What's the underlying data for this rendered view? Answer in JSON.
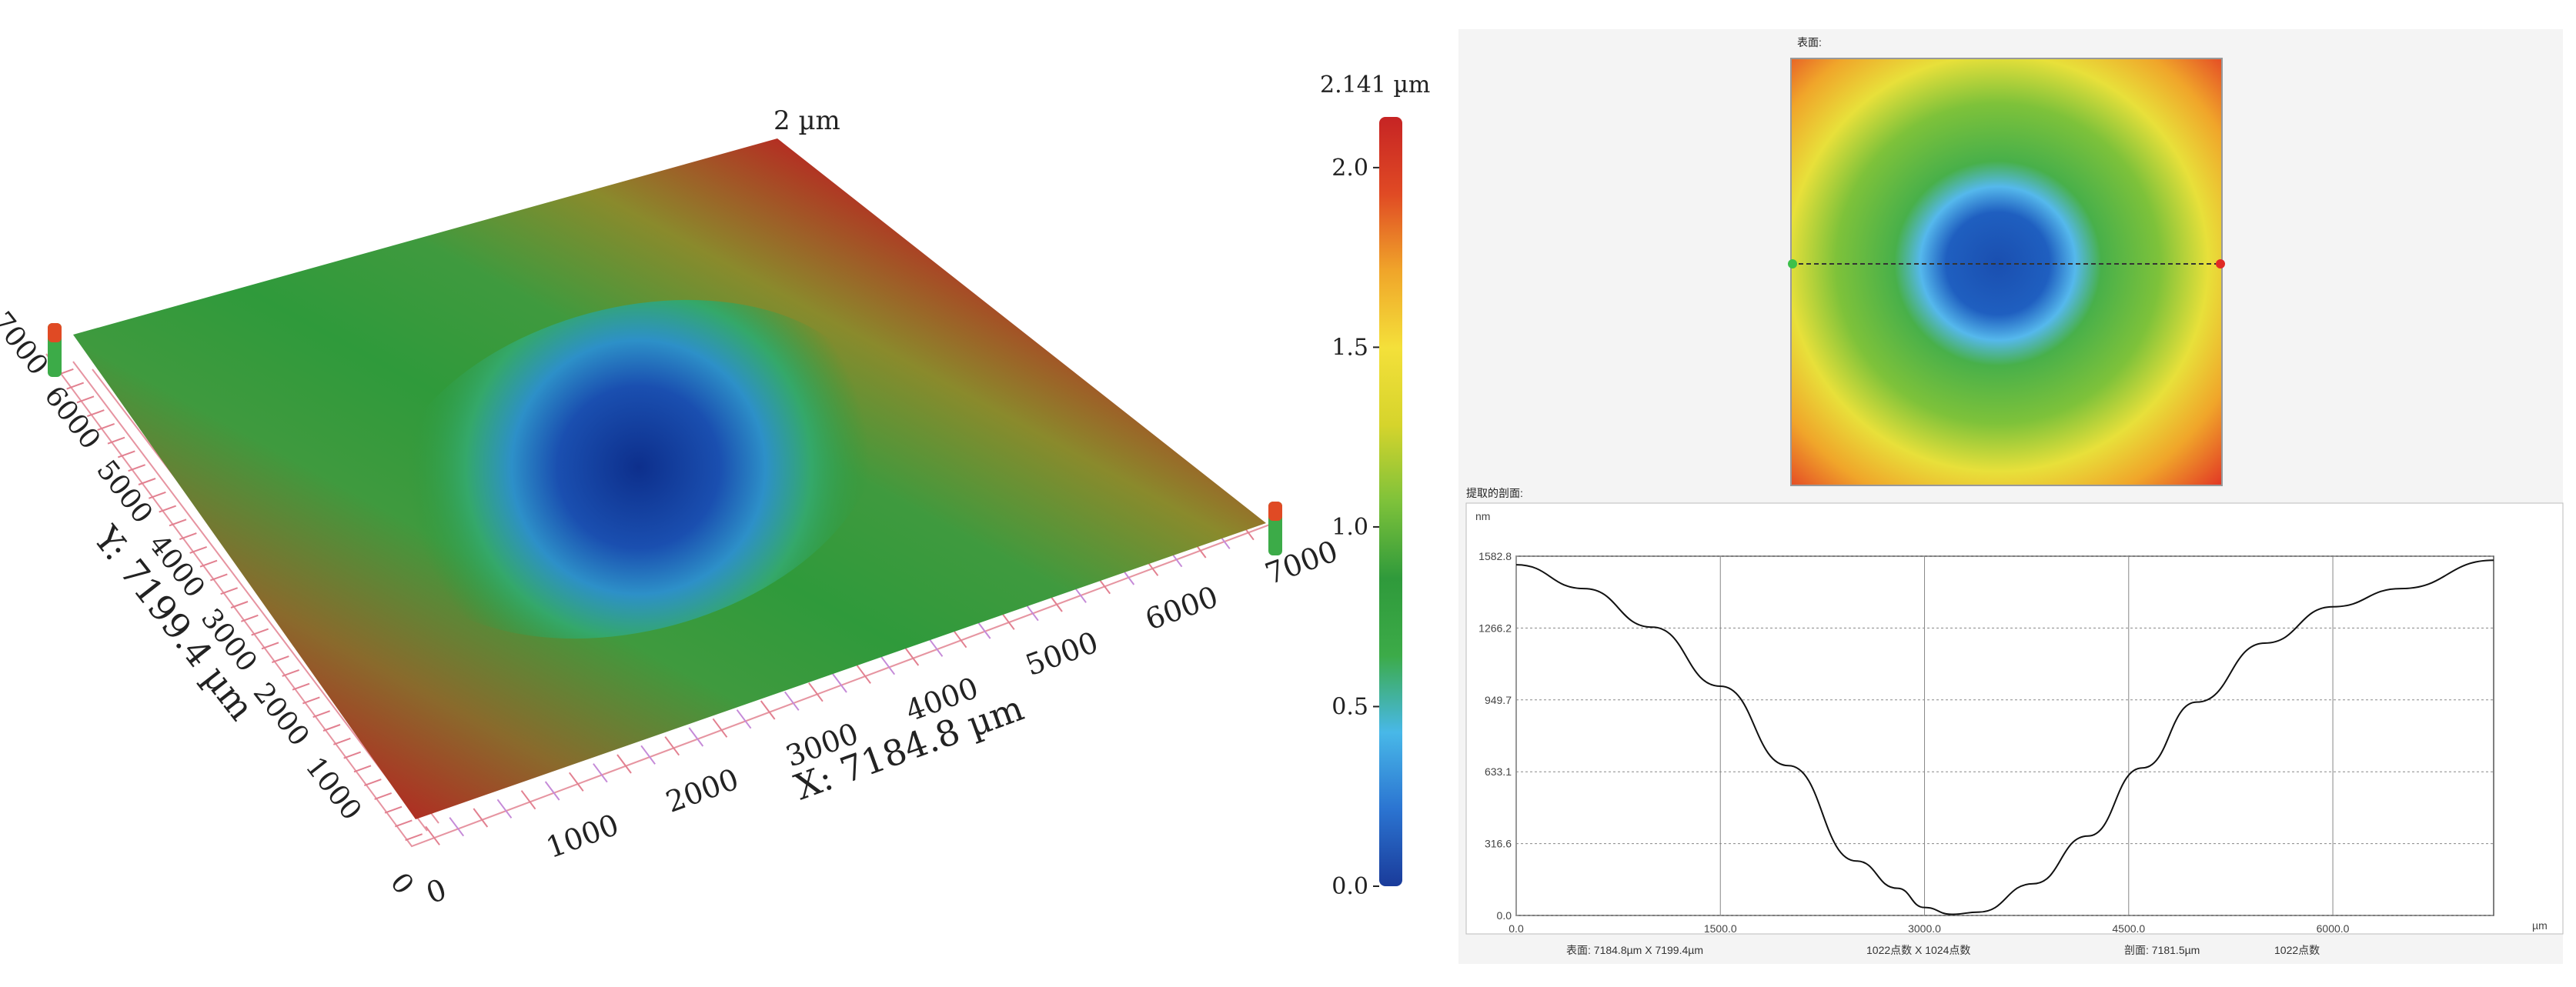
{
  "surface3d": {
    "z_label": "2 µm",
    "x_label": "X: 7184.8 µm",
    "y_label": "Y: 7199.4 µm",
    "x_ticks": [
      "0",
      "1000",
      "2000",
      "3000",
      "4000",
      "5000",
      "6000",
      "7000"
    ],
    "y_ticks": [
      "0",
      "1000",
      "2000",
      "3000",
      "4000",
      "5000",
      "6000",
      "7000"
    ]
  },
  "colorbar": {
    "max_label": "2.141 µm",
    "ticks": [
      "0.0",
      "0.5",
      "1.0",
      "1.5",
      "2.0"
    ],
    "tick_values": [
      0,
      0.5,
      1.0,
      1.5,
      2.0
    ],
    "max_value": 2.141,
    "colors": [
      "#1a3b9a",
      "#2b74d1",
      "#48b8e8",
      "#3cab48",
      "#2f9a3b",
      "#7ec23a",
      "#d6d42c",
      "#f4e03a",
      "#f0a52a",
      "#e04a24",
      "#c62424"
    ]
  },
  "topview": {
    "title": "表面:"
  },
  "profile": {
    "title": "提取的剖面:",
    "y_unit": "nm",
    "x_unit": "µm",
    "y_ticks": [
      "1582.8",
      "1266.2",
      "949.7",
      "633.1",
      "316.6",
      "0.0"
    ],
    "x_ticks": [
      "0.0",
      "1500.0",
      "3000.0",
      "4500.0",
      "6000.0"
    ],
    "footer": [
      {
        "label": "表面:",
        "value": "7184.8µm X 7199.4µm"
      },
      {
        "label": "",
        "value": "1022点数 X 1024点数"
      },
      {
        "label": "剖面:",
        "value": "7181.5µm"
      },
      {
        "label": "",
        "value": "1022点数"
      }
    ]
  },
  "chart_data": {
    "type": "line",
    "title": "提取的剖面:",
    "xlabel": "µm",
    "ylabel": "nm",
    "xlim": [
      0,
      7181.5
    ],
    "ylim": [
      0,
      1582.8
    ],
    "x": [
      0,
      500,
      1000,
      1500,
      2000,
      2500,
      2800,
      3000,
      3200,
      3400,
      3800,
      4200,
      4600,
      5000,
      5500,
      6000,
      6500,
      7181.5
    ],
    "y": [
      1545,
      1440,
      1270,
      1010,
      660,
      240,
      120,
      35,
      5,
      15,
      140,
      350,
      650,
      940,
      1200,
      1360,
      1440,
      1565
    ]
  }
}
